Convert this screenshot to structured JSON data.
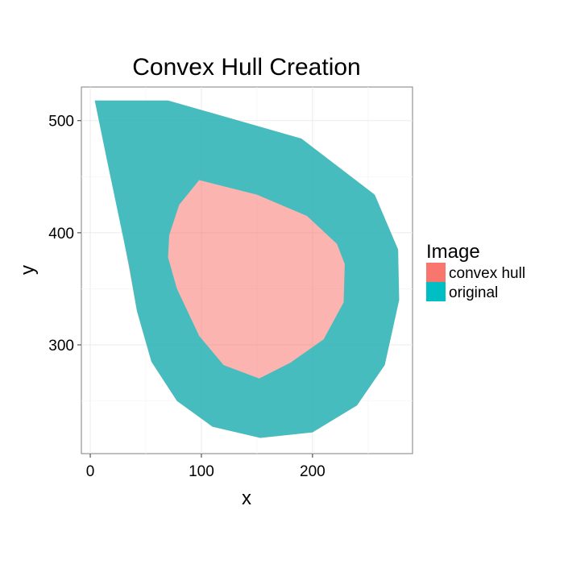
{
  "chart_data": {
    "type": "raster-overlay",
    "title": "Convex Hull Creation",
    "xlabel": "x",
    "ylabel": "y",
    "xlim": [
      -8,
      290
    ],
    "ylim": [
      203,
      530
    ],
    "x_ticks": [
      0,
      100,
      200
    ],
    "y_ticks": [
      300,
      400,
      500
    ],
    "grid": true,
    "legend": {
      "title": "Image",
      "position": "right",
      "entries": [
        {
          "label": "convex hull",
          "color": "#F8766D"
        },
        {
          "label": "original",
          "color": "#00BFC4"
        }
      ]
    },
    "layers": [
      {
        "name": "convex hull",
        "color": "#F8766D",
        "outline": [
          [
            4,
            518
          ],
          [
            70,
            518
          ],
          [
            190,
            484
          ],
          [
            256,
            434
          ],
          [
            277,
            385
          ],
          [
            278,
            340
          ],
          [
            265,
            282
          ],
          [
            240,
            246
          ],
          [
            200,
            222
          ],
          [
            153,
            217
          ],
          [
            110,
            227
          ],
          [
            78,
            250
          ],
          [
            55,
            285
          ],
          [
            42,
            330
          ],
          [
            30,
            395
          ],
          [
            15,
            465
          ]
        ]
      },
      {
        "name": "original",
        "color": "#00BFC4",
        "outer": [
          [
            4,
            518
          ],
          [
            70,
            518
          ],
          [
            190,
            484
          ],
          [
            256,
            434
          ],
          [
            277,
            385
          ],
          [
            278,
            340
          ],
          [
            265,
            282
          ],
          [
            240,
            246
          ],
          [
            200,
            222
          ],
          [
            153,
            217
          ],
          [
            110,
            227
          ],
          [
            78,
            250
          ],
          [
            55,
            285
          ],
          [
            42,
            330
          ],
          [
            35,
            370
          ],
          [
            15,
            465
          ]
        ],
        "hole": [
          [
            98,
            447
          ],
          [
            150,
            434
          ],
          [
            195,
            415
          ],
          [
            222,
            390
          ],
          [
            229,
            372
          ],
          [
            228,
            338
          ],
          [
            210,
            305
          ],
          [
            180,
            284
          ],
          [
            152,
            270
          ],
          [
            120,
            282
          ],
          [
            98,
            308
          ],
          [
            78,
            350
          ],
          [
            70,
            378
          ],
          [
            71,
            398
          ],
          [
            80,
            425
          ]
        ]
      }
    ]
  }
}
